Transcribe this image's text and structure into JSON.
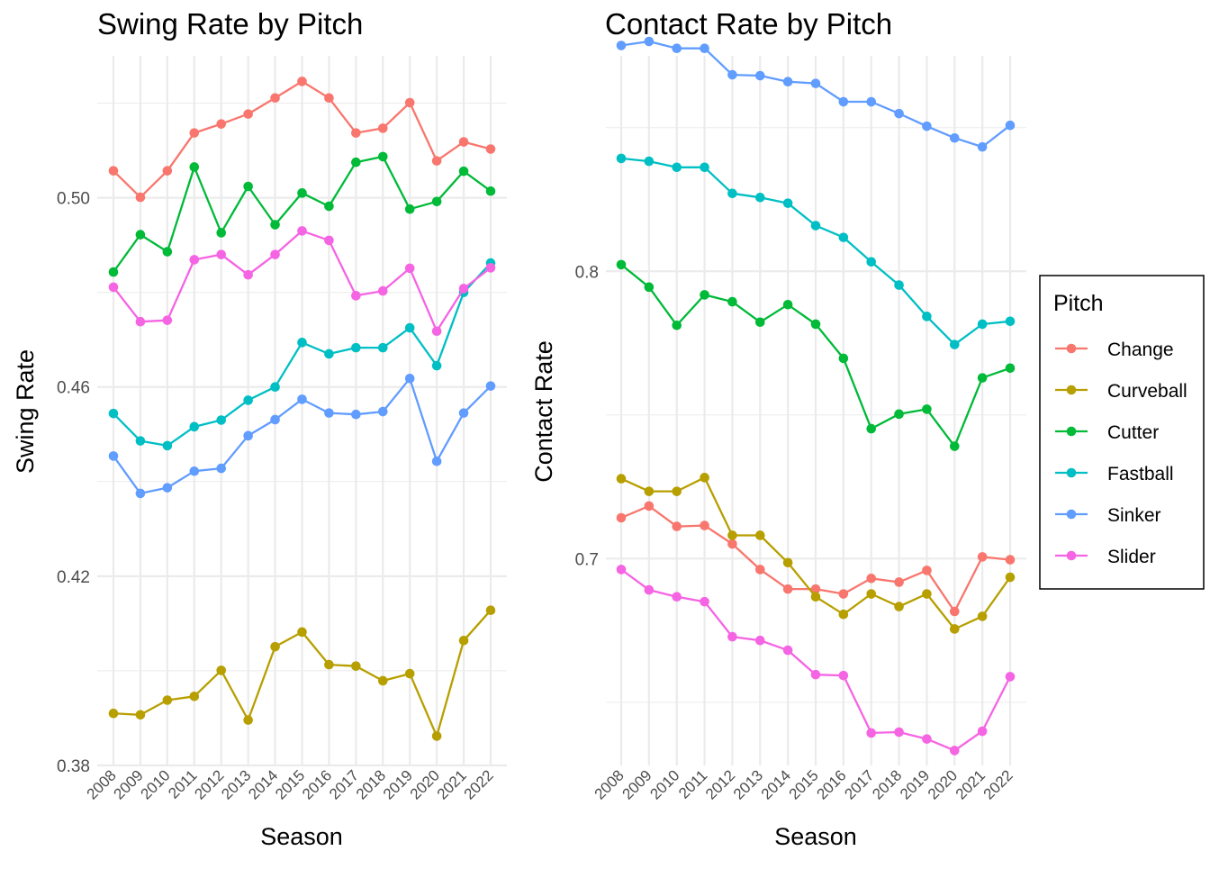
{
  "chart_data": [
    {
      "type": "line",
      "title": "Swing Rate by Pitch",
      "xlabel": "Season",
      "ylabel": "Swing Rate",
      "x": [
        "2008",
        "2009",
        "2010",
        "2011",
        "2012",
        "2013",
        "2014",
        "2015",
        "2016",
        "2017",
        "2018",
        "2019",
        "2020",
        "2021",
        "2022"
      ],
      "ylim": [
        0.38,
        0.53
      ],
      "yticks": [
        0.38,
        0.42,
        0.46,
        0.5
      ],
      "ytick_labels": [
        "0.38",
        "0.42",
        "0.46",
        "0.50"
      ],
      "series": [
        {
          "name": "Change",
          "color": "#F8766D",
          "values": [
            0.5057,
            0.5001,
            0.5057,
            0.5137,
            0.5156,
            0.5177,
            0.5211,
            0.5246,
            0.5211,
            0.5137,
            0.5147,
            0.5201,
            0.5078,
            0.5118,
            0.5103
          ]
        },
        {
          "name": "Curveball",
          "color": "#B79F00",
          "values": [
            0.391,
            0.3907,
            0.3938,
            0.3946,
            0.4001,
            0.3896,
            0.4051,
            0.4082,
            0.4013,
            0.401,
            0.3979,
            0.3994,
            0.3862,
            0.4064,
            0.4128
          ]
        },
        {
          "name": "Cutter",
          "color": "#00BA38",
          "values": [
            0.4843,
            0.4922,
            0.4886,
            0.5065,
            0.4926,
            0.5024,
            0.4943,
            0.501,
            0.4982,
            0.5075,
            0.5087,
            0.4976,
            0.4992,
            0.5056,
            0.5014
          ]
        },
        {
          "name": "Fastball",
          "color": "#00BFC4",
          "values": [
            0.4544,
            0.4486,
            0.4476,
            0.4516,
            0.453,
            0.4572,
            0.46,
            0.4694,
            0.467,
            0.4683,
            0.4683,
            0.4725,
            0.4645,
            0.48,
            0.4862
          ]
        },
        {
          "name": "Sinker",
          "color": "#619CFF",
          "values": [
            0.4454,
            0.4375,
            0.4387,
            0.4422,
            0.4428,
            0.4497,
            0.4531,
            0.4574,
            0.4545,
            0.4542,
            0.4548,
            0.4618,
            0.4443,
            0.4545,
            0.4602
          ]
        },
        {
          "name": "Slider",
          "color": "#F564E3",
          "values": [
            0.4811,
            0.4738,
            0.4741,
            0.4869,
            0.488,
            0.4837,
            0.488,
            0.493,
            0.491,
            0.4793,
            0.4803,
            0.4851,
            0.4718,
            0.4808,
            0.4852
          ]
        }
      ]
    },
    {
      "type": "line",
      "title": "Contact Rate by Pitch",
      "xlabel": "Season",
      "ylabel": "Contact Rate",
      "x": [
        "2008",
        "2009",
        "2010",
        "2011",
        "2012",
        "2013",
        "2014",
        "2015",
        "2016",
        "2017",
        "2018",
        "2019",
        "2020",
        "2021",
        "2022"
      ],
      "ylim": [
        0.628,
        0.875
      ],
      "yticks": [
        0.7,
        0.8
      ],
      "ytick_labels": [
        "0.7",
        "0.8"
      ],
      "series": [
        {
          "name": "Change",
          "color": "#F8766D",
          "values": [
            0.7142,
            0.7183,
            0.7112,
            0.7115,
            0.7051,
            0.6962,
            0.6894,
            0.6894,
            0.6877,
            0.6931,
            0.6918,
            0.6959,
            0.6816,
            0.7006,
            0.6996
          ]
        },
        {
          "name": "Curveball",
          "color": "#B79F00",
          "values": [
            0.7278,
            0.7234,
            0.7234,
            0.7282,
            0.7081,
            0.7081,
            0.6986,
            0.6867,
            0.6806,
            0.6877,
            0.6833,
            0.6877,
            0.6755,
            0.6799,
            0.6935
          ]
        },
        {
          "name": "Cutter",
          "color": "#00BA38",
          "values": [
            0.8023,
            0.7945,
            0.7812,
            0.7918,
            0.7894,
            0.7823,
            0.7884,
            0.7816,
            0.7697,
            0.7452,
            0.7503,
            0.752,
            0.7391,
            0.7629,
            0.7663
          ]
        },
        {
          "name": "Fastball",
          "color": "#00BFC4",
          "values": [
            0.8393,
            0.8383,
            0.8362,
            0.8362,
            0.8271,
            0.8257,
            0.8237,
            0.8159,
            0.8118,
            0.8033,
            0.7952,
            0.7843,
            0.7745,
            0.7816,
            0.7826
          ]
        },
        {
          "name": "Sinker",
          "color": "#619CFF",
          "values": [
            0.8786,
            0.88,
            0.8776,
            0.8776,
            0.8684,
            0.8681,
            0.866,
            0.8654,
            0.859,
            0.859,
            0.8549,
            0.8505,
            0.8464,
            0.8433,
            0.8508
          ]
        },
        {
          "name": "Slider",
          "color": "#F564E3",
          "values": [
            0.6962,
            0.6891,
            0.6867,
            0.685,
            0.6728,
            0.6715,
            0.6681,
            0.6596,
            0.6593,
            0.6393,
            0.6396,
            0.6372,
            0.6332,
            0.6399,
            0.6589
          ]
        }
      ]
    }
  ],
  "legend": {
    "title": "Pitch",
    "position": "right",
    "items": [
      {
        "label": "Change",
        "color": "#F8766D"
      },
      {
        "label": "Curveball",
        "color": "#B79F00"
      },
      {
        "label": "Cutter",
        "color": "#00BA38"
      },
      {
        "label": "Fastball",
        "color": "#00BFC4"
      },
      {
        "label": "Sinker",
        "color": "#619CFF"
      },
      {
        "label": "Slider",
        "color": "#F564E3"
      }
    ]
  }
}
